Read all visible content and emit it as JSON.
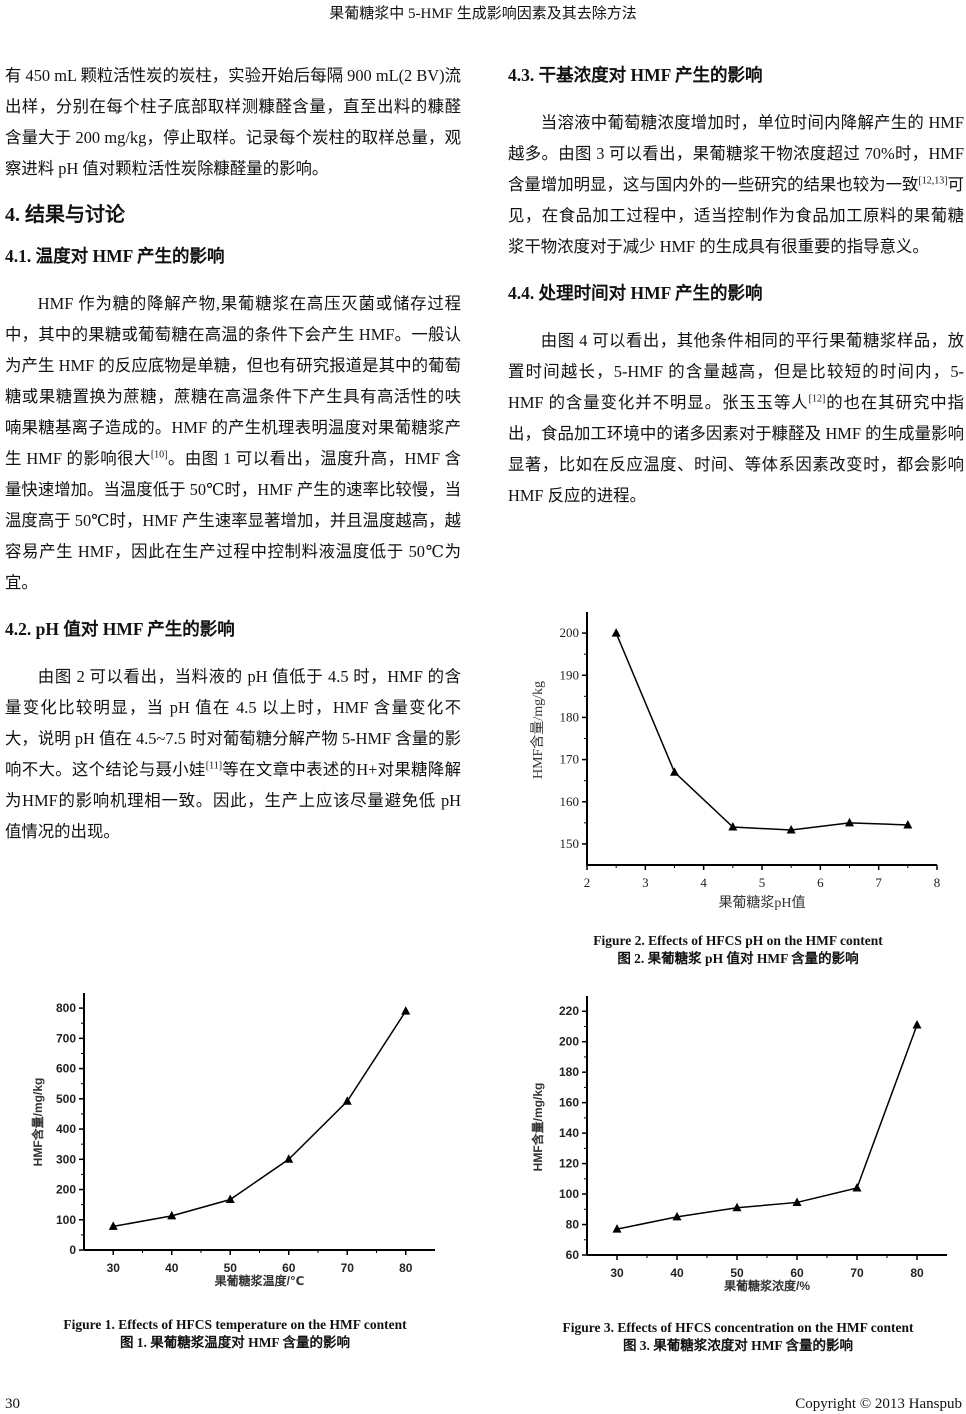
{
  "header": {
    "running_title": "果葡糖浆中 5-HMF 生成影响因素及其去除方法"
  },
  "left": {
    "para1": "有 450 mL 颗粒活性炭的炭柱，实验开始后每隔 900 mL(2 BV)流出样，分别在每个柱子底部取样测糠醛含量，直至出料的糠醛含量大于 200 mg/kg，停止取样。记录每个炭柱的取样总量，观察进料 pH 值对颗粒活性炭除糠醛量的影响。",
    "section4": "4. 结果与讨论",
    "s41_title": "4.1. 温度对 HMF 产生的影响",
    "s41_a": "HMF 作为糖的降解产物,果葡糖浆在高压灭菌或储存过程中，其中的果糖或葡萄糖在高温的条件下会产生 HMF。一般认为产生 HMF 的反应底物是单糖，但也有研究报道是其中的葡萄糖或果糖置换为蔗糖，蔗糖在高温条件下产生具有高活性的呋喃果糖基离子造成的。HMF 的产生机理表明温度对果葡糖浆产生 HMF 的影响很大",
    "s41_ref": "[10]",
    "s41_b": "。由图 1 可以看出，温度升高，HMF 含量快速增加。当温度低于 50℃时，HMF 产生的速率比较慢，当温度高于 50℃时，HMF 产生速率显著增加，并且温度越高，越容易产生 HMF，因此在生产过程中控制料液温度低于 50℃为宜。",
    "s42_title": "4.2. pH 值对 HMF 产生的影响",
    "s42_a": "由图 2 可以看出，当料液的 pH 值低于 4.5 时，HMF 的含量变化比较明显，当 pH 值在 4.5 以上时，HMF 含量变化不大，说明 pH 值在 4.5~7.5 时对葡萄糖分解产物 5-HMF 含量的影响不大。这个结论与聂小娃",
    "s42_ref": "[11]",
    "s42_b": "等在文章中表述的H+对果糖降解为HMF的影响机理相一致。因此，生产上应该尽量避免低 pH 值情况的出现。"
  },
  "right": {
    "s43_title": "4.3. 干基浓度对 HMF 产生的影响",
    "s43_a": "当溶液中葡萄糖浓度增加时，单位时间内降解产生的 HMF 越多。由图 3 可以看出，果葡糖浆干物浓度超过 70%时，HMF 含量增加明显，这与国内外的一些研究的结果也较为一致",
    "s43_ref": "[12,13]",
    "s43_b": "可见，在食品加工过程中，适当控制作为食品加工原料的果葡糖浆干物浓度对于减少 HMF 的生成具有很重要的指导意义。",
    "s44_title": "4.4. 处理时间对 HMF 产生的影响",
    "s44_a": "由图 4 可以看出，其他条件相同的平行果葡糖浆样品，放置时间越长，5-HMF 的含量越高，但是比较短的时间内，5-HMF 的含量变化并不明显。张玉玉等人",
    "s44_ref": "[12]",
    "s44_b": "的也在其研究中指出，食品加工环境中的诸多因素对于糠醛及 HMF 的生成量影响显著，比如在反应温度、时间、等体系因素改变时，都会影响 HMF 反应的进程。"
  },
  "figures": {
    "fig1_en": "Figure 1. Effects of HFCS temperature on the HMF content",
    "fig1_cn": "图 1. 果葡糖浆温度对 HMF 含量的影响",
    "fig2_en": "Figure 2. Effects of HFCS pH on the HMF content",
    "fig2_cn": "图 2. 果葡糖浆 pH 值对 HMF 含量的影响",
    "fig3_en": "Figure 3. Effects of HFCS concentration on the HMF content",
    "fig3_cn": "图 3. 果葡糖浆浓度对 HMF 含量的影响"
  },
  "footer": {
    "page_number": "30",
    "copyright": "Copyright © 2013 Hanspub"
  },
  "chart_data": [
    {
      "id": "fig1",
      "type": "line",
      "marker": "triangle",
      "xlabel": "果葡糖浆温度/℃",
      "ylabel": "HMF含量/mg/kg",
      "x": [
        30,
        40,
        50,
        60,
        70,
        80
      ],
      "y": [
        78,
        113,
        167,
        300,
        492,
        790
      ],
      "xticks": [
        30,
        40,
        50,
        60,
        70,
        80
      ],
      "yticks": [
        0,
        100,
        200,
        300,
        400,
        500,
        600,
        700,
        800
      ],
      "xlim": [
        25,
        85
      ],
      "ylim": [
        0,
        850
      ],
      "grid": false,
      "color": "#000000"
    },
    {
      "id": "fig2",
      "type": "line",
      "marker": "triangle",
      "xlabel": "果葡糖浆pH值",
      "ylabel": "HMF含量/mg/kg",
      "x": [
        2.5,
        3.5,
        4.5,
        5.5,
        6.5,
        7.5
      ],
      "y": [
        200,
        167,
        154,
        153.3,
        155,
        154.5
      ],
      "xticks": [
        2,
        3,
        4,
        5,
        6,
        7,
        8
      ],
      "yticks": [
        150,
        160,
        170,
        180,
        190,
        200
      ],
      "xlim": [
        2,
        8
      ],
      "ylim": [
        145,
        205
      ],
      "grid": false,
      "color": "#000000"
    },
    {
      "id": "fig3",
      "type": "line",
      "marker": "triangle",
      "xlabel": "果葡糖浆浓度/%",
      "ylabel": "HMF含量/mg/kg",
      "x": [
        30,
        40,
        50,
        60,
        70,
        80
      ],
      "y": [
        77,
        85,
        91,
        94.5,
        104,
        211
      ],
      "xticks": [
        30,
        40,
        50,
        60,
        70,
        80
      ],
      "yticks": [
        60,
        80,
        100,
        120,
        140,
        160,
        180,
        200,
        220
      ],
      "xlim": [
        25,
        85
      ],
      "ylim": [
        60,
        230
      ],
      "grid": false,
      "color": "#000000"
    }
  ]
}
